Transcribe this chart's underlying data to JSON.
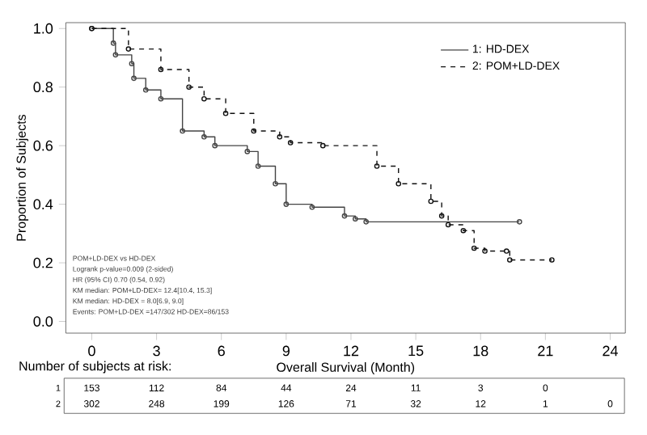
{
  "chart_data": {
    "type": "step",
    "xlabel": "Overall Survival (Month)",
    "ylabel": "Proportion of Subjects",
    "xlim": [
      -1.2,
      24.7
    ],
    "ylim": [
      -0.04,
      1.02
    ],
    "xticks": [
      0,
      3,
      6,
      9,
      12,
      15,
      18,
      21,
      24
    ],
    "yticks": [
      {
        "value": 0,
        "label": "0.0"
      },
      {
        "value": 0.2,
        "label": "0.2"
      },
      {
        "value": 0.4,
        "label": "0.4"
      },
      {
        "value": 0.6,
        "label": "0.6"
      },
      {
        "value": 0.8,
        "label": "0.8"
      },
      {
        "value": 1,
        "label": "1.0"
      }
    ],
    "marker": "circle",
    "legend": "top right",
    "grid": false,
    "series": [
      {
        "name": "1: HD-DEX",
        "color": "#444444",
        "line_style": "solid",
        "x": [
          0,
          1.0,
          1.1,
          1.85,
          1.95,
          2.5,
          3.2,
          4.2,
          5.2,
          5.7,
          7.2,
          7.7,
          8.5,
          9.0,
          10.2,
          11.7,
          12.2,
          12.7,
          19.8
        ],
        "values": [
          1.0,
          0.95,
          0.91,
          0.88,
          0.83,
          0.79,
          0.76,
          0.65,
          0.63,
          0.6,
          0.58,
          0.53,
          0.47,
          0.4,
          0.39,
          0.36,
          0.35,
          0.34,
          0.34
        ]
      },
      {
        "name": "2: POM+LD-DEX",
        "color": "#111111",
        "line_style": "dashed",
        "x": [
          0,
          1.7,
          3.2,
          4.5,
          5.2,
          6.2,
          7.5,
          8.7,
          9.2,
          10.7,
          13.2,
          14.2,
          15.7,
          16.2,
          16.5,
          17.2,
          17.7,
          18.2,
          19.2,
          19.35,
          21.3
        ],
        "values": [
          1.0,
          0.93,
          0.86,
          0.8,
          0.76,
          0.71,
          0.65,
          0.63,
          0.61,
          0.6,
          0.53,
          0.47,
          0.41,
          0.36,
          0.33,
          0.31,
          0.25,
          0.24,
          0.24,
          0.21,
          0.21
        ]
      }
    ],
    "annotations": [
      "POM+LD-DEX vs HD-DEX",
      "Logrank p-value=0.009 (2-sided)",
      "HR (95% CI) 0.70 (0.54, 0.92)",
      "KM median: POM+LD-DEX= 12.4[10.4, 15.3]",
      "KM median: HD-DEX = 8.0[6.9, 9.0]",
      "Events: POM+LD-DEX =147/302 HD-DEX=86/153",
      "Number of subjects at risk:",
      "1",
      "153",
      "112",
      "84",
      "44",
      "24",
      "11",
      "3",
      "0",
      "2",
      "302",
      "248",
      "199",
      "126",
      "71",
      "32",
      "12",
      "1",
      "0"
    ]
  }
}
